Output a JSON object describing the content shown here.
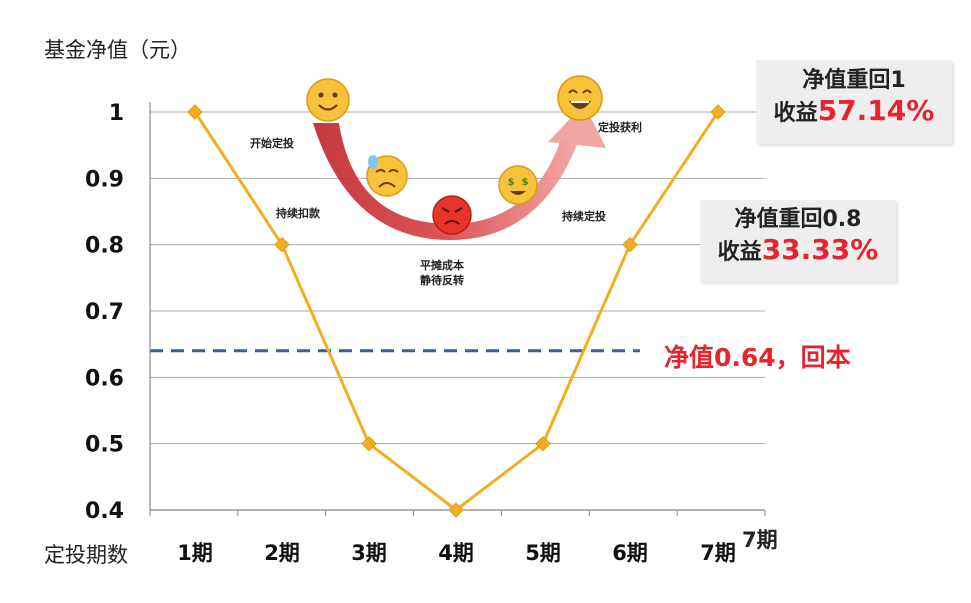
{
  "chart_data": {
    "type": "line",
    "ylabel": "基金净值（元）",
    "xlabel": "定投期数",
    "categories": [
      "1期",
      "2期",
      "3期",
      "4期",
      "5期",
      "6期",
      "7期"
    ],
    "values": [
      1,
      0.8,
      0.5,
      0.4,
      0.5,
      0.8,
      1
    ],
    "ylim": [
      0.4,
      1
    ],
    "y_ticks": [
      "0.4",
      "0.5",
      "0.6",
      "0.7",
      "0.8",
      "0.9",
      "1"
    ],
    "x_end_label": "7期",
    "grid": true,
    "line_color": "#f2ae23",
    "reference_line": {
      "value": 0.64,
      "label": "净值0.64，回本",
      "color": "#3a5f9c"
    },
    "callouts": [
      {
        "line1": "净值重回1",
        "line2_prefix": "收益",
        "line2_value": "57.14%"
      },
      {
        "line1": "净值重回0.8",
        "line2_prefix": "收益",
        "line2_value": "33.33%"
      }
    ],
    "annotations": {
      "start": "开始定投",
      "continue_deduct": "持续扣款",
      "average_cost_l1": "平摊成本",
      "average_cost_l2": "静待反转",
      "continue_invest": "持续定投",
      "profit": "定投获利"
    },
    "accent_red": "#e8232d",
    "emoji_icons": [
      "smile-emoji-icon",
      "sad-emoji-icon",
      "angry-emoji-icon",
      "money-emoji-icon",
      "laugh-emoji-icon"
    ]
  }
}
